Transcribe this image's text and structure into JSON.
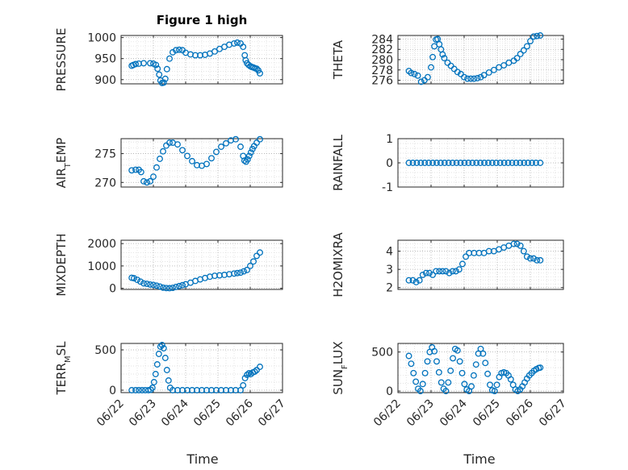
{
  "figure": {
    "title": "Figure 1 high",
    "xlabel": "Time",
    "marker_color": "#0072BD",
    "grid": "major and minor, dotted"
  },
  "chart_data": [
    {
      "id": "pressure",
      "type": "scatter",
      "ylabel_parts": [
        {
          "t": "PRESSURE"
        }
      ],
      "xlim": [
        "06/22",
        "06/27"
      ],
      "xticks": [
        "06/22",
        "06/23",
        "06/24",
        "06/25",
        "06/26",
        "06/27"
      ],
      "ylim": [
        890,
        1005
      ],
      "yticks": [
        900,
        950,
        1000
      ],
      "x_days": [
        0.33,
        0.38,
        0.45,
        0.55,
        0.7,
        0.9,
        1.0,
        1.08,
        1.13,
        1.18,
        1.22,
        1.27,
        1.32,
        1.37,
        1.42,
        1.5,
        1.6,
        1.7,
        1.8,
        1.9,
        2.0,
        2.15,
        2.3,
        2.45,
        2.6,
        2.75,
        2.9,
        3.05,
        3.2,
        3.35,
        3.5,
        3.6,
        3.7,
        3.78,
        3.83,
        3.86,
        3.9,
        3.95,
        4.0,
        4.05,
        4.1,
        4.15,
        4.2,
        4.25,
        4.3
      ],
      "y": [
        933,
        935,
        937,
        938,
        939,
        939,
        938,
        935,
        926,
        912,
        898,
        892,
        893,
        902,
        925,
        950,
        965,
        970,
        971,
        970,
        964,
        960,
        958,
        958,
        959,
        962,
        967,
        973,
        978,
        983,
        986,
        988,
        986,
        978,
        958,
        946,
        939,
        935,
        932,
        930,
        929,
        927,
        926,
        922,
        915
      ]
    },
    {
      "id": "theta",
      "type": "scatter",
      "ylabel_parts": [
        {
          "t": "THETA"
        }
      ],
      "xlim": [
        "06/22",
        "06/27"
      ],
      "xticks": [
        "06/22",
        "06/23",
        "06/24",
        "06/25",
        "06/26",
        "06/27"
      ],
      "ylim": [
        275.3,
        284.7
      ],
      "yticks": [
        276,
        278,
        280,
        282,
        284
      ],
      "x_days": [
        0.33,
        0.4,
        0.5,
        0.6,
        0.7,
        0.8,
        0.9,
        1.0,
        1.05,
        1.1,
        1.15,
        1.2,
        1.25,
        1.3,
        1.35,
        1.4,
        1.5,
        1.6,
        1.7,
        1.8,
        1.9,
        2.0,
        2.1,
        2.2,
        2.3,
        2.4,
        2.5,
        2.6,
        2.75,
        2.9,
        3.05,
        3.2,
        3.35,
        3.5,
        3.6,
        3.7,
        3.8,
        3.9,
        4.0,
        4.1,
        4.2,
        4.3
      ],
      "y": [
        277.8,
        277.4,
        277.2,
        276.9,
        275.7,
        276.0,
        276.6,
        278.5,
        280.5,
        282.6,
        283.9,
        284.0,
        283.0,
        282.0,
        281.0,
        280.3,
        279.4,
        278.8,
        278.2,
        277.6,
        277.2,
        276.6,
        276.3,
        276.3,
        276.3,
        276.4,
        276.6,
        277.0,
        277.5,
        278.0,
        278.5,
        278.9,
        279.4,
        279.8,
        280.3,
        281.1,
        281.8,
        282.6,
        283.6,
        284.5,
        284.6,
        284.7
      ]
    },
    {
      "id": "air_temp",
      "type": "scatter",
      "ylabel_parts": [
        {
          "t": "AIR"
        },
        {
          "t": "T",
          "sub": true
        },
        {
          "t": "EMP"
        }
      ],
      "xlim": [
        "06/22",
        "06/27"
      ],
      "xticks": [
        "06/22",
        "06/23",
        "06/24",
        "06/25",
        "06/26",
        "06/27"
      ],
      "ylim": [
        269.2,
        277.6
      ],
      "yticks": [
        270,
        275
      ],
      "x_days": [
        0.33,
        0.45,
        0.55,
        0.62,
        0.7,
        0.8,
        0.9,
        1.0,
        1.1,
        1.2,
        1.3,
        1.4,
        1.5,
        1.6,
        1.75,
        1.9,
        2.05,
        2.2,
        2.35,
        2.5,
        2.65,
        2.8,
        2.95,
        3.1,
        3.25,
        3.4,
        3.55,
        3.7,
        3.78,
        3.82,
        3.87,
        3.92,
        3.97,
        4.02,
        4.07,
        4.12,
        4.2,
        4.3
      ],
      "y": [
        272.1,
        272.2,
        272.2,
        271.8,
        270.2,
        270.0,
        270.2,
        271.0,
        272.6,
        274.1,
        275.4,
        276.4,
        276.9,
        276.9,
        276.6,
        275.6,
        274.6,
        273.7,
        273.0,
        272.9,
        273.2,
        274.2,
        275.3,
        276.2,
        276.8,
        277.3,
        277.5,
        276.2,
        274.6,
        273.8,
        273.6,
        274.0,
        274.6,
        275.2,
        275.8,
        276.3,
        276.9,
        277.5
      ]
    },
    {
      "id": "rainfall",
      "type": "scatter",
      "ylabel_parts": [
        {
          "t": "RAINFALL"
        }
      ],
      "xlim": [
        "06/22",
        "06/27"
      ],
      "xticks": [
        "06/22",
        "06/23",
        "06/24",
        "06/25",
        "06/26",
        "06/27"
      ],
      "ylim": [
        -1,
        1
      ],
      "yticks": [
        -1,
        0,
        1
      ],
      "x_days": [
        0.33,
        0.45,
        0.57,
        0.69,
        0.81,
        0.93,
        1.05,
        1.17,
        1.29,
        1.41,
        1.53,
        1.65,
        1.77,
        1.89,
        2.01,
        2.13,
        2.25,
        2.37,
        2.49,
        2.61,
        2.73,
        2.85,
        2.97,
        3.09,
        3.21,
        3.33,
        3.45,
        3.57,
        3.69,
        3.81,
        3.93,
        4.05,
        4.17,
        4.3
      ],
      "y": [
        0,
        0,
        0,
        0,
        0,
        0,
        0,
        0,
        0,
        0,
        0,
        0,
        0,
        0,
        0,
        0,
        0,
        0,
        0,
        0,
        0,
        0,
        0,
        0,
        0,
        0,
        0,
        0,
        0,
        0,
        0,
        0,
        0,
        0
      ]
    },
    {
      "id": "mixdepth",
      "type": "scatter",
      "ylabel_parts": [
        {
          "t": "MIXDEPTH"
        }
      ],
      "xlim": [
        "06/22",
        "06/27"
      ],
      "xticks": [
        "06/22",
        "06/23",
        "06/24",
        "06/25",
        "06/26",
        "06/27"
      ],
      "ylim": [
        -50,
        2150
      ],
      "yticks": [
        0,
        1000,
        2000
      ],
      "x_days": [
        0.33,
        0.4,
        0.5,
        0.6,
        0.7,
        0.8,
        0.9,
        1.0,
        1.1,
        1.2,
        1.3,
        1.4,
        1.5,
        1.6,
        1.7,
        1.8,
        1.9,
        2.0,
        2.15,
        2.3,
        2.45,
        2.6,
        2.75,
        2.9,
        3.05,
        3.2,
        3.35,
        3.5,
        3.6,
        3.7,
        3.8,
        3.9,
        4.0,
        4.1,
        4.2,
        4.3
      ],
      "y": [
        470,
        450,
        380,
        300,
        220,
        200,
        170,
        150,
        120,
        80,
        30,
        10,
        5,
        20,
        60,
        100,
        140,
        180,
        250,
        330,
        400,
        460,
        520,
        560,
        580,
        600,
        630,
        660,
        680,
        700,
        760,
        820,
        1000,
        1200,
        1450,
        1600
      ]
    },
    {
      "id": "h2omixra",
      "type": "scatter",
      "ylabel_parts": [
        {
          "t": "H2OMIXRA"
        }
      ],
      "xlim": [
        "06/22",
        "06/27"
      ],
      "xticks": [
        "06/22",
        "06/23",
        "06/24",
        "06/25",
        "06/26",
        "06/27"
      ],
      "ylim": [
        1.9,
        4.6
      ],
      "yticks": [
        2,
        3,
        4
      ],
      "x_days": [
        0.33,
        0.45,
        0.55,
        0.65,
        0.75,
        0.85,
        0.95,
        1.05,
        1.15,
        1.25,
        1.35,
        1.45,
        1.55,
        1.65,
        1.75,
        1.85,
        1.95,
        2.05,
        2.15,
        2.3,
        2.45,
        2.6,
        2.75,
        2.9,
        3.05,
        3.2,
        3.35,
        3.5,
        3.6,
        3.7,
        3.8,
        3.9,
        4.0,
        4.1,
        4.2,
        4.3
      ],
      "y": [
        2.4,
        2.4,
        2.3,
        2.4,
        2.7,
        2.8,
        2.8,
        2.7,
        2.9,
        2.9,
        2.9,
        2.9,
        2.8,
        2.9,
        2.9,
        3.0,
        3.3,
        3.7,
        3.9,
        3.9,
        3.9,
        3.9,
        4.0,
        4.0,
        4.1,
        4.2,
        4.3,
        4.4,
        4.4,
        4.3,
        4.0,
        3.7,
        3.6,
        3.6,
        3.5,
        3.5
      ]
    },
    {
      "id": "terrain_msl",
      "type": "scatter",
      "ylabel_parts": [
        {
          "t": "TERR"
        },
        {
          "t": "M",
          "sub": true
        },
        {
          "t": "SL"
        }
      ],
      "xlim": [
        "06/22",
        "06/27"
      ],
      "xticks": [
        "06/22",
        "06/23",
        "06/24",
        "06/25",
        "06/26",
        "06/27"
      ],
      "ylim": [
        -30,
        580
      ],
      "yticks": [
        0,
        500
      ],
      "x_days": [
        0.33,
        0.45,
        0.55,
        0.65,
        0.75,
        0.85,
        0.92,
        0.97,
        1.02,
        1.07,
        1.12,
        1.17,
        1.22,
        1.27,
        1.32,
        1.37,
        1.42,
        1.47,
        1.52,
        1.6,
        1.75,
        1.9,
        2.05,
        2.2,
        2.35,
        2.5,
        2.65,
        2.8,
        2.95,
        3.1,
        3.25,
        3.4,
        3.55,
        3.7,
        3.78,
        3.84,
        3.9,
        3.96,
        4.02,
        4.08,
        4.14,
        4.2,
        4.3
      ],
      "y": [
        0,
        0,
        0,
        0,
        0,
        0,
        5,
        30,
        100,
        200,
        320,
        450,
        540,
        560,
        520,
        400,
        250,
        120,
        30,
        0,
        0,
        0,
        0,
        0,
        0,
        0,
        0,
        0,
        0,
        0,
        0,
        0,
        0,
        0,
        60,
        150,
        190,
        210,
        200,
        220,
        230,
        250,
        290
      ]
    },
    {
      "id": "sun_flux",
      "type": "scatter",
      "ylabel_parts": [
        {
          "t": "SUN"
        },
        {
          "t": "F",
          "sub": true
        },
        {
          "t": "LUX"
        }
      ],
      "xlim": [
        "06/22",
        "06/27"
      ],
      "xticks": [
        "06/22",
        "06/23",
        "06/24",
        "06/25",
        "06/26",
        "06/27"
      ],
      "ylim": [
        -20,
        610
      ],
      "yticks": [
        0,
        500
      ],
      "x_days": [
        0.33,
        0.4,
        0.47,
        0.54,
        0.61,
        0.68,
        0.75,
        0.82,
        0.89,
        0.96,
        1.03,
        1.1,
        1.17,
        1.24,
        1.31,
        1.38,
        1.45,
        1.52,
        1.59,
        1.66,
        1.73,
        1.8,
        1.87,
        1.94,
        2.01,
        2.08,
        2.15,
        2.22,
        2.29,
        2.36,
        2.43,
        2.5,
        2.57,
        2.64,
        2.71,
        2.78,
        2.85,
        2.92,
        2.99,
        3.06,
        3.13,
        3.2,
        3.27,
        3.34,
        3.41,
        3.48,
        3.55,
        3.62,
        3.69,
        3.76,
        3.83,
        3.9,
        3.97,
        4.04,
        4.11,
        4.18,
        4.25,
        4.3
      ],
      "y": [
        450,
        350,
        230,
        120,
        30,
        0,
        90,
        230,
        380,
        500,
        560,
        510,
        380,
        240,
        110,
        30,
        0,
        110,
        260,
        420,
        540,
        520,
        380,
        230,
        90,
        20,
        0,
        60,
        200,
        340,
        480,
        540,
        480,
        360,
        220,
        80,
        10,
        0,
        80,
        180,
        230,
        240,
        230,
        200,
        150,
        80,
        20,
        0,
        20,
        60,
        110,
        160,
        200,
        230,
        260,
        280,
        295,
        300
      ]
    }
  ]
}
